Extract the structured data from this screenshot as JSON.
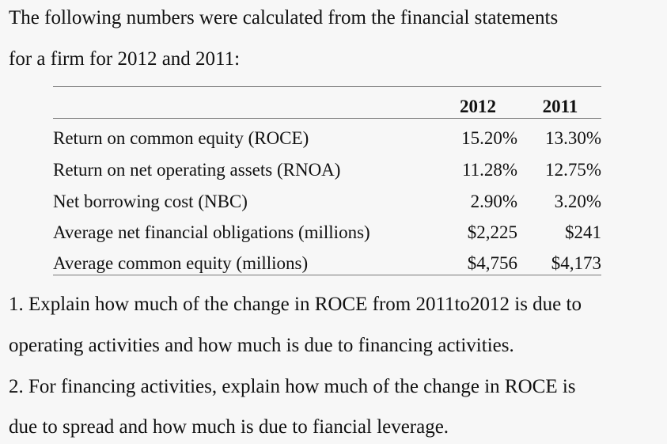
{
  "intro": {
    "line1": "The following numbers were calculated from the financial statements",
    "line2": "for a firm for 2012 and 2011:"
  },
  "table": {
    "columns": [
      "2012",
      "2011"
    ],
    "rows": [
      {
        "label": "Return on common equity (ROCE)",
        "v2012": "15.20%",
        "v2011": "13.30%"
      },
      {
        "label": "Return on net operating assets (RNOA)",
        "v2012": "11.28%",
        "v2011": "12.75%"
      },
      {
        "label": "Net borrowing cost (NBC)",
        "v2012": "2.90%",
        "v2011": "3.20%"
      },
      {
        "label": "Average net financial obligations (millions)",
        "v2012": "$2,225",
        "v2011": "$241"
      },
      {
        "label": "Average common equity (millions)",
        "v2012": "$4,756",
        "v2011": "$4,173"
      }
    ]
  },
  "questions": {
    "q1_line1": "1. Explain how much of the change in ROCE from 2011to2012 is due to",
    "q1_line2": "operating activities and how much is due to financing activities.",
    "q2_line1": "2. For financing activities, explain how much of the change in ROCE is",
    "q2_line2": "due to spread and how much is due to fiancial leverage."
  }
}
